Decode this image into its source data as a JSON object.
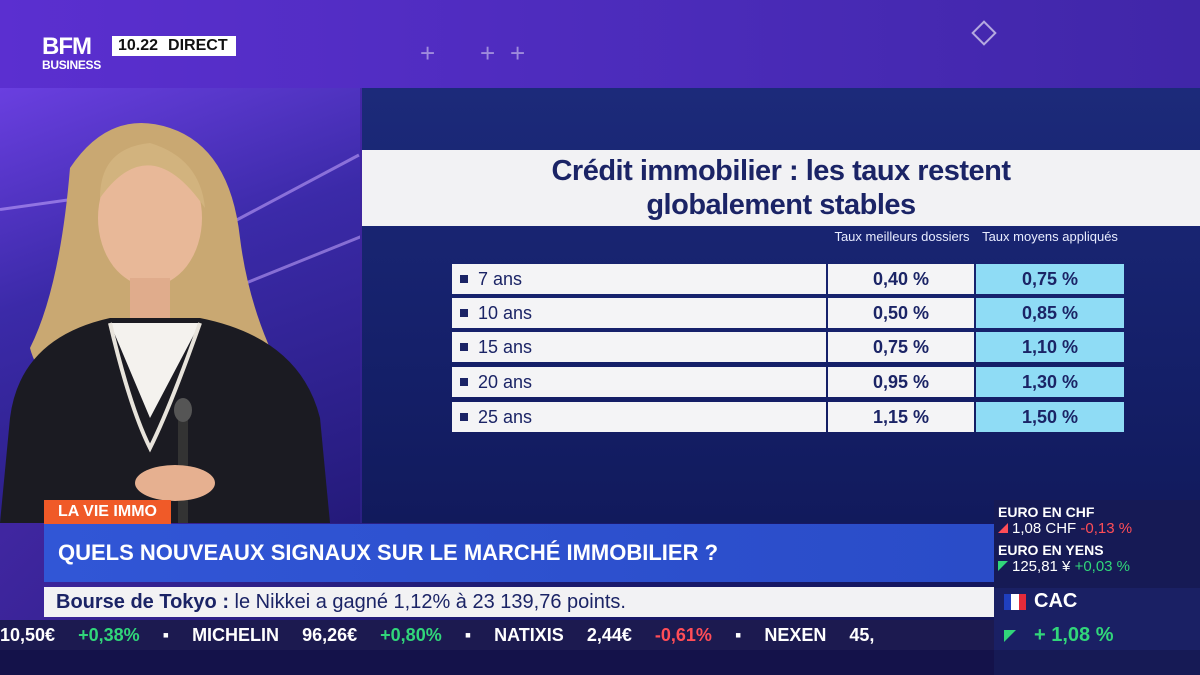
{
  "brand": {
    "name_top": "BFM",
    "name_bottom": "BUSINESS",
    "time": "10.22",
    "live_label": "DIRECT"
  },
  "graphic": {
    "title_line1": "Crédit immobilier : les taux restent",
    "title_line2": "globalement stables",
    "col1_header": "Taux meilleurs dossiers",
    "col2_header": "Taux moyens appliqués",
    "rows": [
      {
        "label": "7 ans",
        "best": "0,40 %",
        "avg": "0,75 %"
      },
      {
        "label": "10 ans",
        "best": "0,50 %",
        "avg": "0,85 %"
      },
      {
        "label": "15 ans",
        "best": "0,75 %",
        "avg": "1,10 %"
      },
      {
        "label": "20 ans",
        "best": "0,95 %",
        "avg": "1,30 %"
      },
      {
        "label": "25 ans",
        "best": "1,15 %",
        "avg": "1,50 %"
      }
    ]
  },
  "lower_third": {
    "tag": "LA VIE IMMO",
    "headline": "QUELS NOUVEAUX SIGNAUX SUR LE MARCHÉ IMMOBILIER ?",
    "info_bold": "Bourse de Tokyo :",
    "info_text": " le Nikkei a gagné 1,12% à 23 139,76 points."
  },
  "ticker": [
    {
      "text": "10,50€",
      "cls": ""
    },
    {
      "text": "+0,38%",
      "cls": "up"
    },
    {
      "text": "▪",
      "cls": "bul"
    },
    {
      "text": "MICHELIN",
      "cls": ""
    },
    {
      "text": "96,26€",
      "cls": ""
    },
    {
      "text": "+0,80%",
      "cls": "up"
    },
    {
      "text": "▪",
      "cls": "bul"
    },
    {
      "text": "NATIXIS",
      "cls": ""
    },
    {
      "text": "2,44€",
      "cls": ""
    },
    {
      "text": "-0,61%",
      "cls": "down"
    },
    {
      "text": "▪",
      "cls": "bul"
    },
    {
      "text": "NEXEN",
      "cls": ""
    },
    {
      "text": "45,",
      "cls": ""
    }
  ],
  "markets": {
    "chf": {
      "name": "EURO EN CHF",
      "value": "1,08 CHF",
      "change": "-0,13 %"
    },
    "yen": {
      "name": "EURO EN YENS",
      "value": "125,81 ¥",
      "change": "+0,03 %"
    },
    "cac": {
      "name": "CAC",
      "change": "+ 1,08 %"
    }
  },
  "colors": {
    "accent_orange": "#f05a28",
    "headline_blue": "#3156d6",
    "rate_highlight": "#8fdcf5",
    "up": "#31d67a",
    "down": "#ff4d57"
  }
}
